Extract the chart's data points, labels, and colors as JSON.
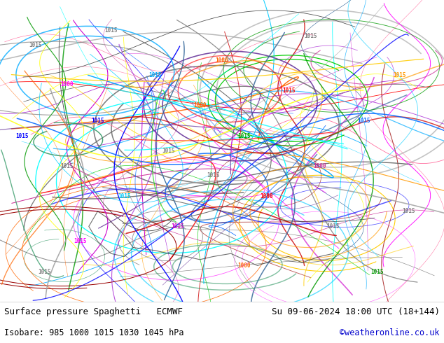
{
  "title_left": "Surface pressure Spaghetti   ECMWF",
  "title_right": "Su 09-06-2024 18:00 UTC (18+144)",
  "subtitle_left": "Isobare: 985 1000 1015 1030 1045 hPa",
  "subtitle_right": "©weatheronline.co.uk",
  "subtitle_right_color": "#0000cc",
  "bg_map_color": "#c8e6a0",
  "bg_bottom_color": "#f0f0f0",
  "text_color": "#000000",
  "font_family": "monospace",
  "title_fontsize": 9,
  "subtitle_fontsize": 8.5,
  "fig_width": 6.34,
  "fig_height": 4.9,
  "dpi": 100
}
